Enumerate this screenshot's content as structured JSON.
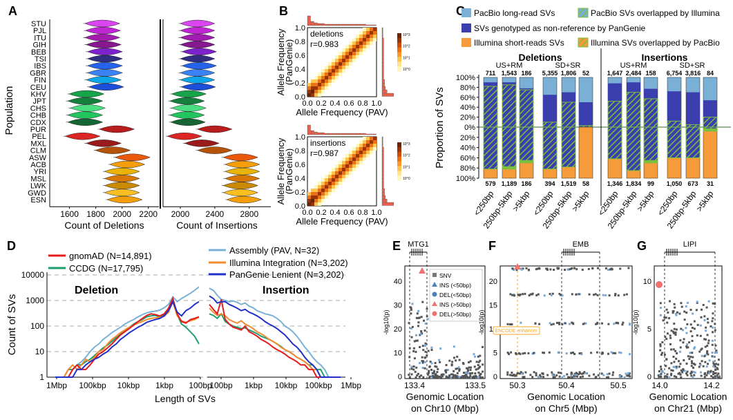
{
  "panel_letters": [
    "A",
    "B",
    "C",
    "D",
    "E",
    "F",
    "G"
  ],
  "colors": {
    "pacbio": "#7ab0d6",
    "pangenie": "#3b3fae",
    "illumina": "#f59b3a",
    "overlap": "#7bbf3e",
    "gnomad": "#e41a1c",
    "ccdg": "#1f9e6e",
    "assembly": "#7ab0d6",
    "illumina_integration": "#f28a2e",
    "pangenie_lenient": "#2130c8"
  },
  "chart_data": [
    {
      "id": "A",
      "type": "violin",
      "ylabel": "Population",
      "populations": [
        "STU",
        "PJL",
        "ITU",
        "GIH",
        "BEB",
        "TSI",
        "IBS",
        "GBR",
        "FIN",
        "CEU",
        "KHV",
        "JPT",
        "CHS",
        "CHB",
        "CDX",
        "PUR",
        "PEL",
        "MXL",
        "CLM",
        "ASW",
        "ACB",
        "YRI",
        "MSL",
        "LWK",
        "GWD",
        "ESN"
      ],
      "population_colors": [
        "#d946ef",
        "#c026d3",
        "#a21caf",
        "#86198f",
        "#7e22ce",
        "#312e81",
        "#2563eb",
        "#3b82f6",
        "#0ea5e9",
        "#1d4ed8",
        "#16a34a",
        "#15803d",
        "#4ade80",
        "#22c55e",
        "#166534",
        "#b91c1c",
        "#dc2626",
        "#991b1b",
        "#b45309",
        "#ea580c",
        "#f59e0b",
        "#eab308",
        "#d97706",
        "#ca8a04",
        "#fbbf24",
        "#f59e0b"
      ],
      "deletions": {
        "xlabel": "Count of Deletions",
        "xticks": [
          "1600",
          "1800",
          "2000",
          "2200"
        ],
        "xlim": [
          1450,
          2280
        ],
        "medians": [
          1850,
          1855,
          1850,
          1860,
          1870,
          1870,
          1870,
          1870,
          1860,
          1880,
          1730,
          1720,
          1740,
          1720,
          1720,
          1960,
          1700,
          1860,
          1930,
          2080,
          2040,
          2000,
          2000,
          2000,
          2000,
          2020
        ]
      },
      "insertions": {
        "xlabel": "Count of Insertions",
        "xticks": [
          "2000",
          "2400",
          "2800"
        ],
        "xlim": [
          1800,
          3050
        ],
        "medians": [
          2200,
          2200,
          2200,
          2200,
          2220,
          2200,
          2220,
          2200,
          2200,
          2210,
          2100,
          2080,
          2100,
          2080,
          2090,
          2400,
          2050,
          2250,
          2400,
          2700,
          2720,
          2720,
          2720,
          2700,
          2700,
          2740
        ]
      }
    },
    {
      "id": "B",
      "type": "heatmap",
      "xlabel": "Allele Frequency (PAV)",
      "ylabel": "Allele Frequency\n(PanGenie)",
      "ticks": [
        "0.0",
        "0.2",
        "0.4",
        "0.6",
        "0.8",
        "1.0"
      ],
      "colorbar_ticks": [
        "10^3",
        "10^2",
        "10^1",
        "10^0"
      ],
      "panels": [
        {
          "label": "deletions",
          "stat": "r=0.983"
        },
        {
          "label": "insertions",
          "stat": "r=0.987"
        }
      ]
    },
    {
      "id": "C",
      "type": "bar",
      "ylabel": "Proportion of SVs",
      "yticks_top": [
        "100%",
        "80%",
        "60%",
        "40%",
        "20%",
        "0%"
      ],
      "yticks_bottom": [
        "20%",
        "40%",
        "60%",
        "80%",
        "100%"
      ],
      "legend": [
        "PacBio long-read SVs",
        "PacBio SVs overlapped by Illumina",
        "SVs genotyped as non-reference by PanGenie",
        "Illumina short-reads SVs",
        "Illumina SVs overlapped by PacBio"
      ],
      "groups": [
        {
          "title": "Deletions",
          "subgroups": [
            {
              "label": "US+RM",
              "bars": [
                0,
                1,
                2
              ]
            },
            {
              "label": "SD+SR",
              "bars": [
                3,
                4,
                5
              ]
            }
          ]
        },
        {
          "title": "Insertions",
          "subgroups": [
            {
              "label": "US+RM",
              "bars": [
                6,
                7,
                8
              ]
            },
            {
              "label": "SD+SR",
              "bars": [
                9,
                10,
                11
              ]
            }
          ]
        }
      ],
      "categories": [
        "<250bp",
        "250bp-5kbp",
        ">5kbp",
        "<250bp",
        "250bp-5kbp",
        ">5kbp",
        "<250bp",
        "250bp-5kbp",
        ">5kbp",
        "<250bp",
        "250bp-5kbp",
        ">5kbp"
      ],
      "pacbio_counts": [
        "711",
        "1,543",
        "186",
        "5,355",
        "1,806",
        "52",
        "1,647",
        "2,484",
        "158",
        "6,754",
        "3,816",
        "84"
      ],
      "illumina_counts": [
        "579",
        "1,189",
        "186",
        "394",
        "1,519",
        "58",
        "1,346",
        "1,834",
        "99",
        "1,050",
        "673",
        "31"
      ],
      "pacbio_overlap": [
        82,
        85,
        75,
        10,
        50,
        3,
        52,
        70,
        57,
        12,
        5,
        20
      ],
      "pacbio_pangenie": [
        90,
        90,
        78,
        65,
        70,
        50,
        88,
        90,
        77,
        72,
        70,
        54
      ],
      "pacbio_note": "above overlap: blue = genotyped non-reference; remainder light blue",
      "illumina_overlap": [
        82,
        82,
        70,
        82,
        78,
        0,
        62,
        85,
        70,
        60,
        60,
        8
      ],
      "illumina_green_band": [
        false,
        true,
        true,
        false,
        false,
        false,
        false,
        false,
        true,
        false,
        false,
        true
      ]
    },
    {
      "id": "D",
      "type": "line",
      "ylabel": "Count of SVs",
      "xlabel": "Length of SVs",
      "yticks": [
        "10000",
        "1000",
        "100",
        "10",
        "1"
      ],
      "xticks_del": [
        "1Mbp",
        "100kbp",
        "10kbp",
        "1kbp",
        "100bp"
      ],
      "xticks_ins": [
        "100bp",
        "1kbp",
        "10kbp",
        "100kbp",
        "1Mbp"
      ],
      "panel_titles": [
        "Deletion",
        "Insertion"
      ],
      "series": [
        {
          "name": "gnomAD (N=14,891)",
          "key": "gnomad",
          "del": [
            1,
            1,
            1,
            1,
            2,
            3,
            2,
            2,
            3,
            5,
            8,
            10,
            14,
            20,
            30,
            45,
            60,
            80,
            110,
            150,
            200,
            260,
            300,
            280,
            250,
            300,
            500,
            1200,
            300,
            150,
            130,
            180,
            200,
            230
          ],
          "ins": [
            700,
            450,
            300,
            1100,
            180,
            120,
            90,
            80,
            70,
            100,
            60,
            50,
            40,
            30,
            25,
            20,
            15,
            12,
            10,
            8,
            6,
            5,
            4,
            3,
            3,
            2,
            2,
            1,
            1,
            1,
            1,
            1,
            1,
            1
          ]
        },
        {
          "name": "CCDG (N=17,795)",
          "key": "ccdg",
          "del": [
            1,
            1,
            1,
            2,
            2,
            3,
            3,
            4,
            5,
            7,
            10,
            14,
            18,
            25,
            35,
            50,
            70,
            90,
            120,
            150,
            180,
            230,
            250,
            260,
            220,
            280,
            460,
            1100,
            280,
            120,
            90,
            60,
            40,
            20
          ],
          "ins": [
            300,
            260,
            200,
            300,
            150,
            120,
            100,
            90,
            80,
            85,
            70,
            60,
            50,
            40,
            35,
            30,
            25,
            20,
            16,
            12,
            10,
            8,
            6,
            5,
            4,
            3,
            3,
            2,
            2,
            1,
            1,
            1,
            1,
            1
          ]
        },
        {
          "name": "Assembly (PAV, N=32)",
          "key": "assembly",
          "del": [
            1,
            1,
            1,
            1,
            2,
            3,
            4,
            6,
            10,
            15,
            20,
            30,
            40,
            55,
            70,
            90,
            120,
            150,
            180,
            230,
            280,
            330,
            360,
            380,
            420,
            520,
            700,
            1400,
            900,
            1200,
            1500,
            1900,
            2500,
            3400
          ],
          "ins": [
            3000,
            2500,
            1600,
            1100,
            1000,
            900,
            950,
            850,
            700,
            800,
            600,
            520,
            400,
            350,
            300,
            280,
            250,
            200,
            150,
            100,
            80,
            60,
            40,
            25,
            15,
            10,
            6,
            4,
            3,
            2,
            1,
            1,
            1,
            1
          ]
        },
        {
          "name": "Illumina Integration (N=3,202)",
          "key": "illumina_integration",
          "del": [
            1,
            1,
            1,
            2,
            3,
            2,
            3,
            5,
            4,
            6,
            10,
            12,
            20,
            30,
            40,
            55,
            70,
            90,
            110,
            130,
            150,
            180,
            200,
            210,
            220,
            240,
            350,
            900,
            250,
            160,
            140,
            160,
            180,
            220
          ],
          "ins": [
            500,
            350,
            260,
            300,
            250,
            180,
            150,
            130,
            160,
            120,
            100,
            80,
            60,
            50,
            40,
            30,
            25,
            20,
            15,
            12,
            10,
            8,
            6,
            5,
            4,
            3,
            2,
            2,
            1,
            1,
            1,
            1,
            1,
            1
          ]
        },
        {
          "name": "PanGenie Lenient (N=3,202)",
          "key": "pangenie_lenient",
          "del": [
            1,
            1,
            1,
            1,
            1,
            2,
            2,
            3,
            4,
            5,
            6,
            8,
            10,
            15,
            20,
            30,
            40,
            55,
            70,
            90,
            110,
            140,
            160,
            180,
            200,
            250,
            400,
            900,
            350,
            250,
            400,
            500,
            700,
            900
          ],
          "ins": [
            1500,
            1200,
            800,
            900,
            900,
            700,
            600,
            500,
            400,
            450,
            350,
            300,
            250,
            200,
            150,
            120,
            100,
            80,
            60,
            45,
            30,
            20,
            15,
            10,
            6,
            4,
            3,
            2,
            1,
            1,
            1,
            1,
            1,
            1
          ]
        }
      ]
    },
    {
      "id": "E",
      "type": "scatter",
      "gene": "MTG1",
      "ylabel": "-log10(p)",
      "xlabel": "Genomic Location\non Chr10 (Mbp)",
      "xticks": [
        "133.4",
        "133.5"
      ],
      "yticks": [
        "0",
        "10",
        "20",
        "30",
        "40"
      ],
      "legend": [
        "SNV",
        "INS (<50bp)",
        "DEL(<50bp)",
        "INS (>50bp)",
        "DEL(>50bp)"
      ]
    },
    {
      "id": "F",
      "type": "scatter",
      "gene": "EMB",
      "ylabel": "-log10(p)",
      "xlabel": "Genomic Location\non Chr5 (Mbp)",
      "xticks": [
        "50.3",
        "50.4",
        "50.5"
      ],
      "yticks": [
        "0",
        "5",
        "10",
        "15",
        "20"
      ],
      "annotation": "ENCODE enhancer"
    },
    {
      "id": "G",
      "type": "scatter",
      "gene": "LIPI",
      "ylabel": "-log10(p)",
      "xlabel": "Genomic Location\non Chr21 (Mbp)",
      "xticks": [
        "14.0",
        "14.2"
      ],
      "yticks": [
        "0",
        "5",
        "10"
      ]
    }
  ]
}
